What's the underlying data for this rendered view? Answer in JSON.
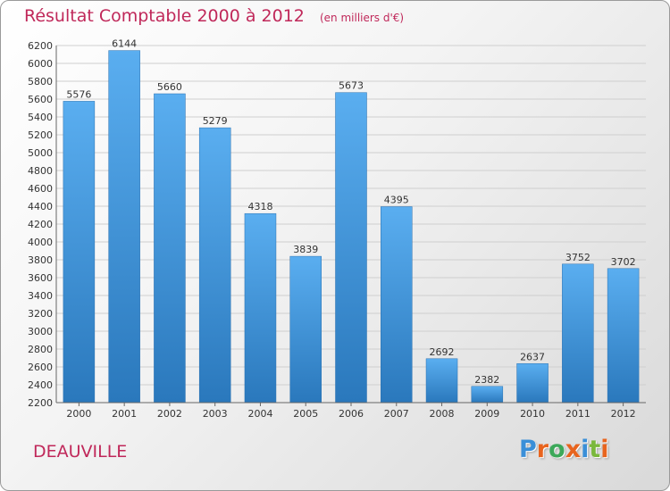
{
  "chart_data": {
    "type": "bar",
    "title": "Résultat Comptable 2000 à 2012",
    "unit": "(en milliers d'€)",
    "categories": [
      "2000",
      "2001",
      "2002",
      "2003",
      "2004",
      "2005",
      "2006",
      "2007",
      "2008",
      "2009",
      "2010",
      "2011",
      "2012"
    ],
    "values": [
      5576,
      6144,
      5660,
      5279,
      4318,
      3839,
      5673,
      4395,
      2692,
      2382,
      2637,
      3752,
      3702
    ],
    "value_labels": [
      "5576",
      "6144",
      "5660",
      "5279",
      "4318",
      "3839",
      "5673",
      "4395",
      "2692",
      "2382",
      "2637",
      "3752",
      "3702"
    ],
    "ylim": [
      2200,
      6200
    ],
    "yticks": [
      "2200",
      "2400",
      "2600",
      "2800",
      "3000",
      "3200",
      "3400",
      "3600",
      "3800",
      "4000",
      "4200",
      "4400",
      "4600",
      "4800",
      "5000",
      "5200",
      "5400",
      "5600",
      "5800",
      "6000",
      "6200"
    ],
    "grid": true,
    "bar_color_top": "#5aaef0",
    "bar_color_bottom": "#2a78bc"
  },
  "location": "DEAUVILLE",
  "logo": {
    "text": "Proxiti",
    "colors": [
      "#3a8fd8",
      "#e8641e",
      "#3ca85a",
      "#e8641e",
      "#3a8fd8",
      "#7ab83c",
      "#e8641e"
    ]
  }
}
